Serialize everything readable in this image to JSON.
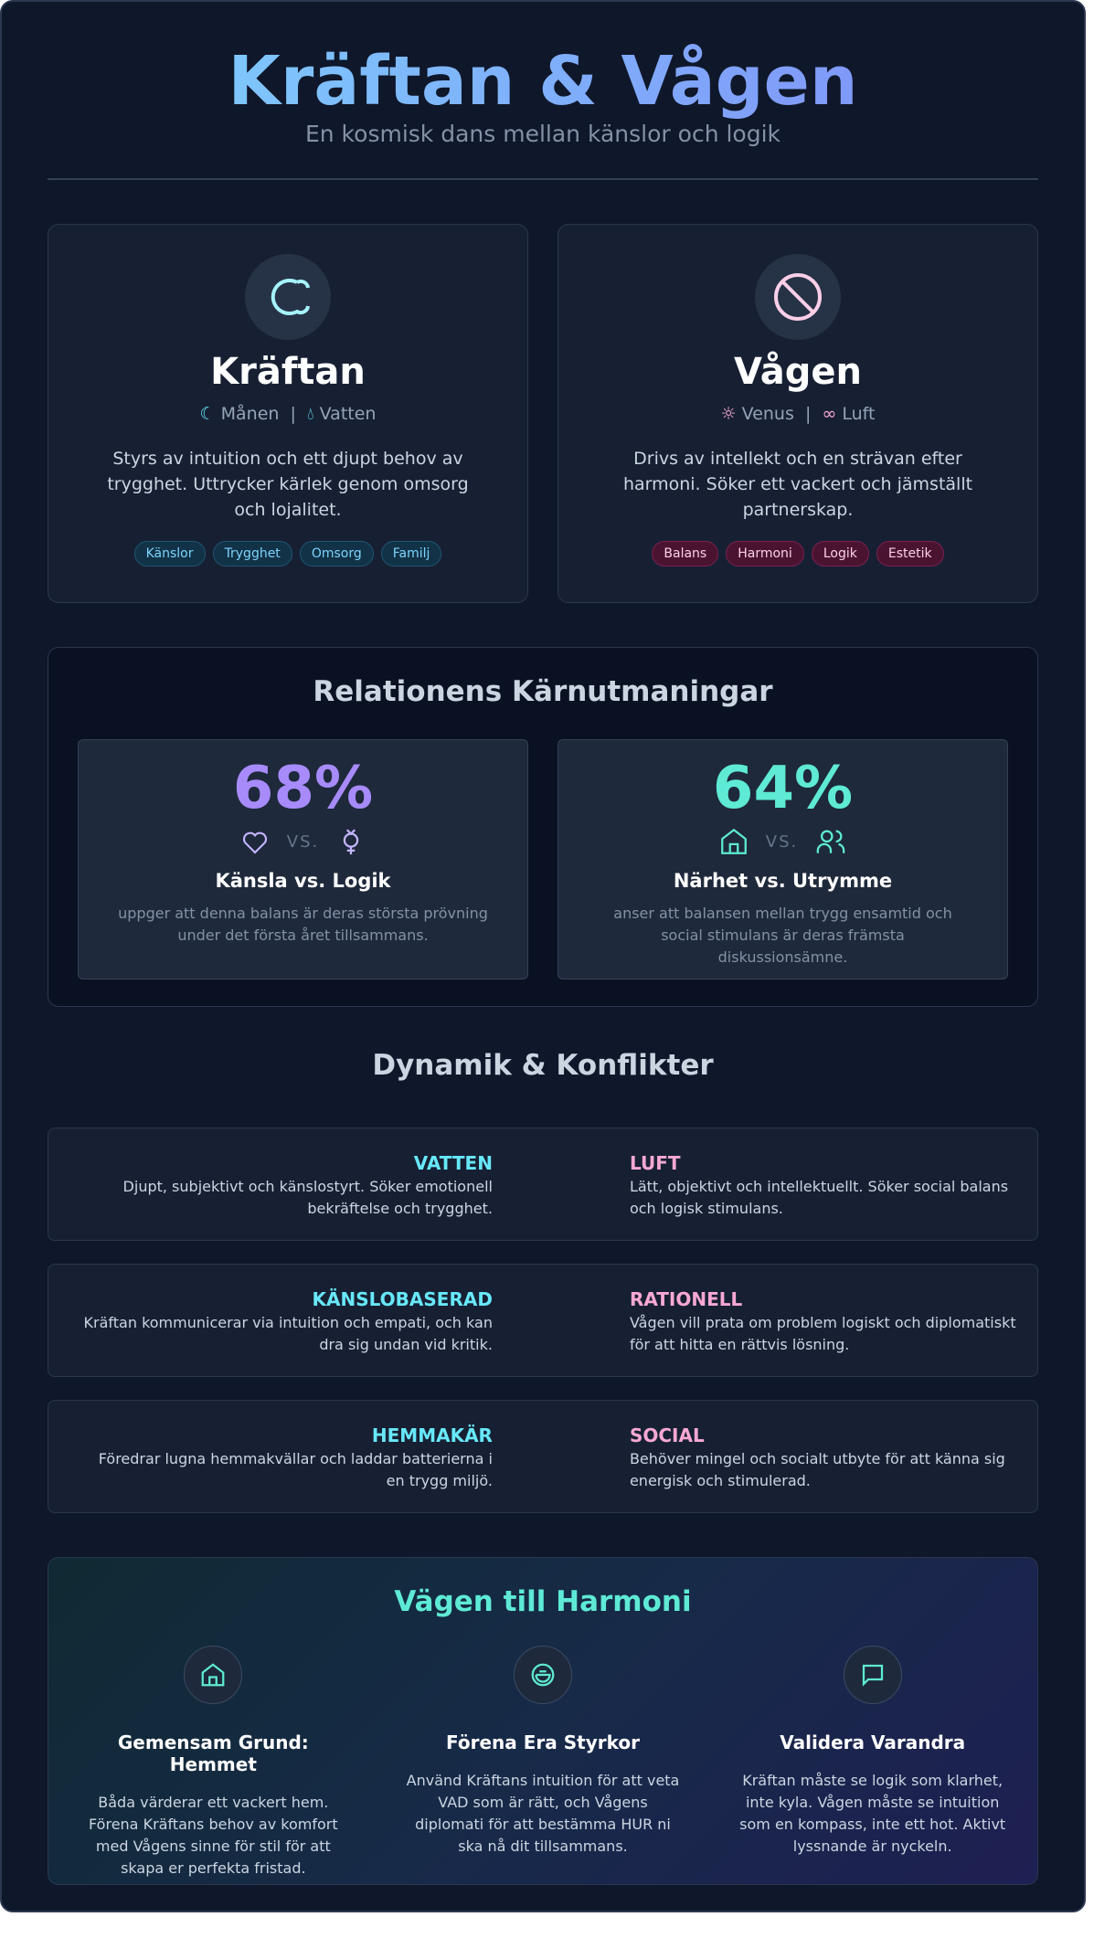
{
  "header": {
    "title": "Kräftan & Vågen",
    "subtitle": "En kosmisk dans mellan känslor och logik"
  },
  "signs": [
    {
      "name": "Kräftan",
      "planet": "Månen",
      "element": "Vatten",
      "description": "Styrs av intuition och ett djupt behov av trygghet. Uttrycker kärlek genom omsorg och lojalitet.",
      "tags": [
        "Känslor",
        "Trygghet",
        "Omsorg",
        "Familj"
      ]
    },
    {
      "name": "Vågen",
      "planet": "Venus",
      "element": "Luft",
      "description": "Drivs av intellekt och en strävan efter harmoni. Söker ett vackert och jämställt partnerskap.",
      "tags": [
        "Balans",
        "Harmoni",
        "Logik",
        "Estetik"
      ]
    }
  ],
  "challenges": {
    "title": "Relationens Kärnutmaningar",
    "items": [
      {
        "percent": "68%",
        "vs": "VS.",
        "title": "Känsla vs. Logik",
        "text": "uppger att denna balans är deras största prövning under det första året tillsammans."
      },
      {
        "percent": "64%",
        "vs": "VS.",
        "title": "Närhet vs. Utrymme",
        "text": "anser att balansen mellan trygg ensamtid och social stimulans är deras främsta diskussionsämne."
      }
    ]
  },
  "dynamics": {
    "title": "Dynamik & Konflikter",
    "rows": [
      {
        "left_title": "VATTEN",
        "left_text": "Djupt, subjektivt och känslostyrt. Söker emotionell bekräftelse och trygghet.",
        "right_title": "LUFT",
        "right_text": "Lätt, objektivt och intellektuellt. Söker social balans och logisk stimulans."
      },
      {
        "left_title": "KÄNSLOBASERAD",
        "left_text": "Kräftan kommunicerar via intuition och empati, och kan dra sig undan vid kritik.",
        "right_title": "RATIONELL",
        "right_text": "Vågen vill prata om problem logiskt och diplomatiskt för att hitta en rättvis lösning."
      },
      {
        "left_title": "HEMMAKÄR",
        "left_text": "Föredrar lugna hemmakvällar och laddar batterierna i en trygg miljö.",
        "right_title": "SOCIAL",
        "right_text": "Behöver mingel och socialt utbyte för att känna sig energisk och stimulerad."
      }
    ]
  },
  "harmony": {
    "title": "Vägen till Harmoni",
    "items": [
      {
        "title": "Gemensam Grund: Hemmet",
        "text": "Båda värderar ett vackert hem. Förena Kräftans behov av komfort med Vågens sinne för stil för att skapa er perfekta fristad."
      },
      {
        "title": "Förena Era Styrkor",
        "text": "Använd Kräftans intuition för att veta VAD som är rätt, och Vågens diplomati för att bestämma HUR ni ska nå dit tillsammans."
      },
      {
        "title": "Validera Varandra",
        "text": "Kräftan måste se logik som klarhet, inte kyla. Vågen måste se intuition som en kompass, inte ett hot. Aktivt lyssnande är nyckeln."
      }
    ]
  }
}
